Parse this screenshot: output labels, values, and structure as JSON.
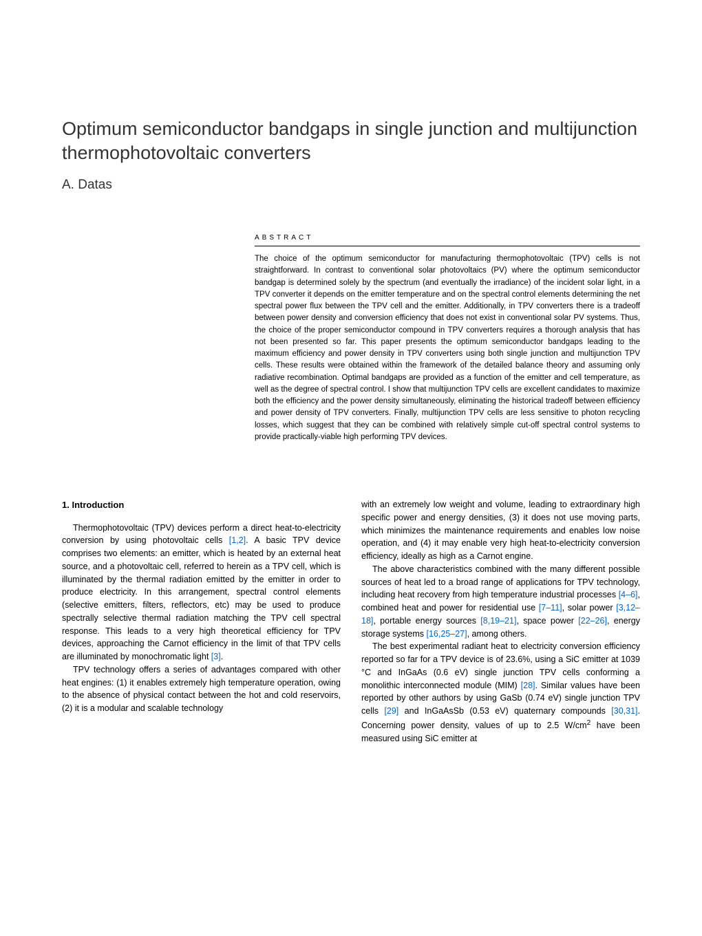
{
  "title": "Optimum semiconductor bandgaps in single junction and multijunction thermophotovoltaic converters",
  "author": "A. Datas",
  "abstract": {
    "heading": "ABSTRACT",
    "text": "The choice of the optimum semiconductor for manufacturing thermophotovoltaic (TPV) cells is not straightforward. In contrast to conventional solar photovoltaics (PV) where the optimum semiconductor bandgap is determined solely by the spectrum (and eventually the irradiance) of the incident solar light, in a TPV converter it depends on the emitter temperature and on the spectral control elements determining the net spectral power flux between the TPV cell and the emitter. Additionally, in TPV converters there is a tradeoff between power density and conversion efficiency that does not exist in conventional solar PV systems. Thus, the choice of the proper semiconductor compound in TPV converters requires a thorough analysis that has not been presented so far. This paper presents the optimum semiconductor bandgaps leading to the maximum efficiency and power density in TPV converters using both single junction and multijunction TPV cells. These results were obtained within the framework of the detailed balance theory and assuming only radiative recombination. Optimal bandgaps are provided as a function of the emitter and cell temperature, as well as the degree of spectral control. I show that multijunction TPV cells are excellent candidates to maximize both the efficiency and the power density simultaneously, eliminating the historical tradeoff between efficiency and power density of TPV converters. Finally, multijunction TPV cells are less sensitive to photon recycling losses, which suggest that they can be combined with relatively simple cut-off spectral control systems to provide practically-viable high performing TPV devices."
  },
  "section1": {
    "heading": "1.  Introduction",
    "leftColumn": {
      "p1_before_ref1": "Thermophotovoltaic (TPV) devices perform a direct heat-to-electricity conversion by using photovoltaic cells ",
      "ref1": "[1,2]",
      "p1_after_ref1": ". A basic TPV device comprises two elements: an emitter, which is heated by an external heat source, and a photovoltaic cell, referred to herein as a TPV cell, which is illuminated by the thermal radiation emitted by the emitter in order to produce electricity. In this arrangement, spectral control elements (selective emitters, filters, reflectors, etc) may be used to produce spectrally selective thermal radiation matching the TPV cell spectral response. This leads to a very high theoretical efficiency for TPV devices, approaching the Carnot efficiency in the limit of that TPV cells are illuminated by monochromatic light ",
      "ref2": "[3]",
      "p1_end": ".",
      "p2": "TPV technology offers a series of advantages compared with other heat engines: (1) it enables extremely high temperature operation, owing to the absence of physical contact between the hot and cold reservoirs, (2) it is a modular and scalable technology"
    },
    "rightColumn": {
      "p1": "with an extremely low weight and volume, leading to extraordinary high specific power and energy densities, (3) it does not use moving parts, which minimizes the maintenance requirements and enables low noise operation, and (4) it may enable very high heat-to-electricity conversion efficiency, ideally as high as a Carnot engine.",
      "p2_a": "The above characteristics combined with the many different possible sources of heat led to a broad range of applications for TPV technology, including heat recovery from high temperature industrial processes ",
      "ref_a": "[4–6]",
      "p2_b": ", combined heat and power for residential use ",
      "ref_b": "[7–11]",
      "p2_c": ", solar power ",
      "ref_c": "[3,12–18]",
      "p2_d": ", portable energy sources ",
      "ref_d": "[8,19–21]",
      "p2_e": ", space power ",
      "ref_e": "[22–26]",
      "p2_f": ", energy storage systems ",
      "ref_f": "[16,25–27]",
      "p2_g": ", among others.",
      "p3_a": "The best experimental radiant heat to electricity conversion efficiency reported so far for a TPV device is of 23.6%, using a SiC emitter at 1039 °C and InGaAs (0.6 eV) single junction TPV cells conforming a monolithic interconnected module (MIM) ",
      "ref_g": "[28]",
      "p3_b": ". Similar values have been reported by other authors by using GaSb (0.74 eV) single junction TPV cells ",
      "ref_h": "[29]",
      "p3_c": " and InGaAsSb (0.53 eV) quaternary compounds ",
      "ref_i": "[30,31]",
      "p3_d": ". Concerning power density, values of up to 2.5 W/cm",
      "sup": "2",
      "p3_e": " have been measured using SiC emitter at"
    }
  }
}
